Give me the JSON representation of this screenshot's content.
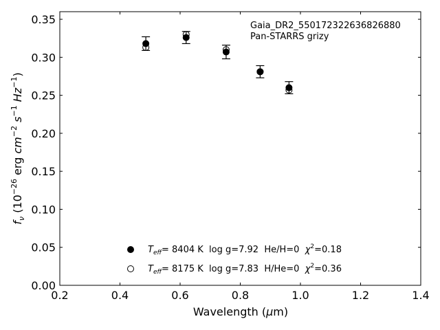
{
  "chart_data": {
    "type": "scatter",
    "xlabel_parts": {
      "text": "Wavelength (",
      "mu": "μ",
      "unit": "m)"
    },
    "ylabel_parts": {
      "f": "f",
      "nu": "ν",
      "open": " (10",
      "exp": "−26",
      "erg": " erg ",
      "cm": "cm",
      "cm_exp": "−2",
      "s": " s",
      "s_exp": "−1",
      "hz": " Hz",
      "hz_exp": "−1",
      "close": ")"
    },
    "xlim": [
      0.2,
      1.4
    ],
    "ylim": [
      0.0,
      0.36
    ],
    "xticks": [
      "0.2",
      "0.4",
      "0.6",
      "0.8",
      "1.0",
      "1.2",
      "1.4"
    ],
    "yticks": [
      "0.00",
      "0.05",
      "0.10",
      "0.15",
      "0.20",
      "0.25",
      "0.30",
      "0.35"
    ],
    "annotations": [
      "Gaia_DR2_550172322636826880",
      "Pan-STARRS grizy"
    ],
    "legend_location": "lower-center",
    "series": [
      {
        "marker": "open-circle",
        "color": "#000000",
        "x": [
          0.486,
          0.62,
          0.753,
          0.866,
          0.962
        ],
        "y": [
          0.313,
          0.33,
          0.31,
          0.281,
          0.257
        ],
        "legend": {
          "T": "T",
          "eff": "eff",
          "value": "= 8175 K  log g=7.83  H/He=0  ",
          "chi": "χ",
          "two": "2",
          "chi_value": "=0.36"
        }
      },
      {
        "marker": "filled-circle",
        "color": "#000000",
        "x": [
          0.486,
          0.62,
          0.753,
          0.866,
          0.962
        ],
        "y": [
          0.318,
          0.326,
          0.307,
          0.281,
          0.26
        ],
        "yerr": [
          0.009,
          0.008,
          0.009,
          0.008,
          0.008
        ],
        "legend": {
          "T": "T",
          "eff": "eff",
          "value": "= 8404 K  log g=7.92  He/H=0  ",
          "chi": "χ",
          "two": "2",
          "chi_value": "=0.18"
        }
      }
    ]
  }
}
